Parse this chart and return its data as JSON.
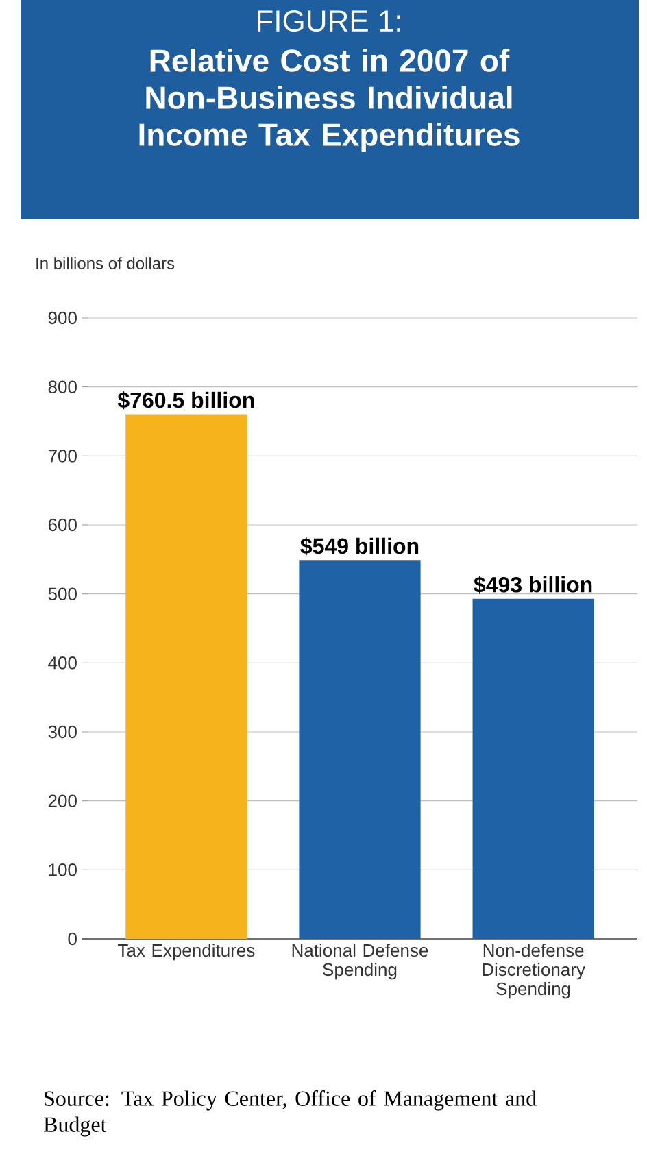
{
  "chart_data": {
    "type": "bar",
    "title": "FIGURE 1:",
    "subtitle": "Relative Cost in 2007 of Non-Business Individual Income Tax Expenditures",
    "ylabel": "In billions of dollars",
    "categories": [
      "Tax Expenditures",
      "National Defense Spending",
      "Non-defense Discretionary Spending"
    ],
    "values": [
      760.5,
      549,
      493
    ],
    "colors": [
      "#f6b31b",
      "#1f62a6",
      "#1f62a6"
    ],
    "value_labels": [
      "$760.5 billion",
      "$549 billion",
      "$493 billion"
    ],
    "ylim": [
      0,
      900
    ],
    "yticks": [
      0,
      100,
      200,
      300,
      400,
      500,
      600,
      700,
      800,
      900
    ],
    "grid": "y",
    "annotations": [
      "Source: Tax Policy Center, Office of Management and Budget"
    ]
  }
}
